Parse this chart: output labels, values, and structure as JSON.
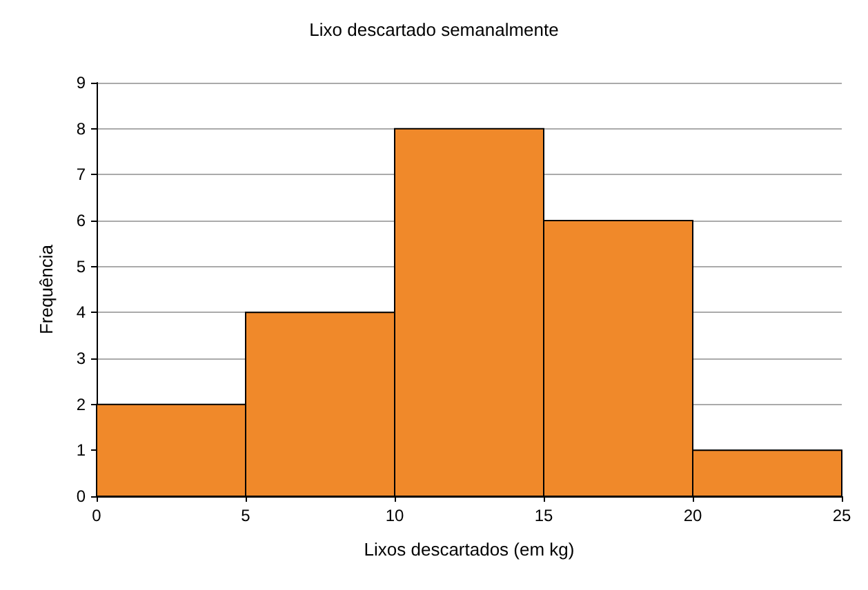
{
  "chart_data": {
    "type": "histogram",
    "title": "Lixo descartado semanalmente",
    "xlabel": "Lixos descartados (em kg)",
    "ylabel": "Frequência",
    "bins": [
      0,
      5,
      10,
      15,
      20,
      25
    ],
    "values": [
      2,
      4,
      8,
      6,
      1
    ],
    "color": "#f0892a",
    "xlim": [
      0,
      25
    ],
    "xticks": [
      0,
      5,
      10,
      15,
      20,
      25
    ],
    "ylim": [
      0,
      9
    ],
    "yticks": [
      0,
      1,
      2,
      3,
      4,
      5,
      6,
      7,
      8,
      9
    ],
    "grid": "y"
  }
}
